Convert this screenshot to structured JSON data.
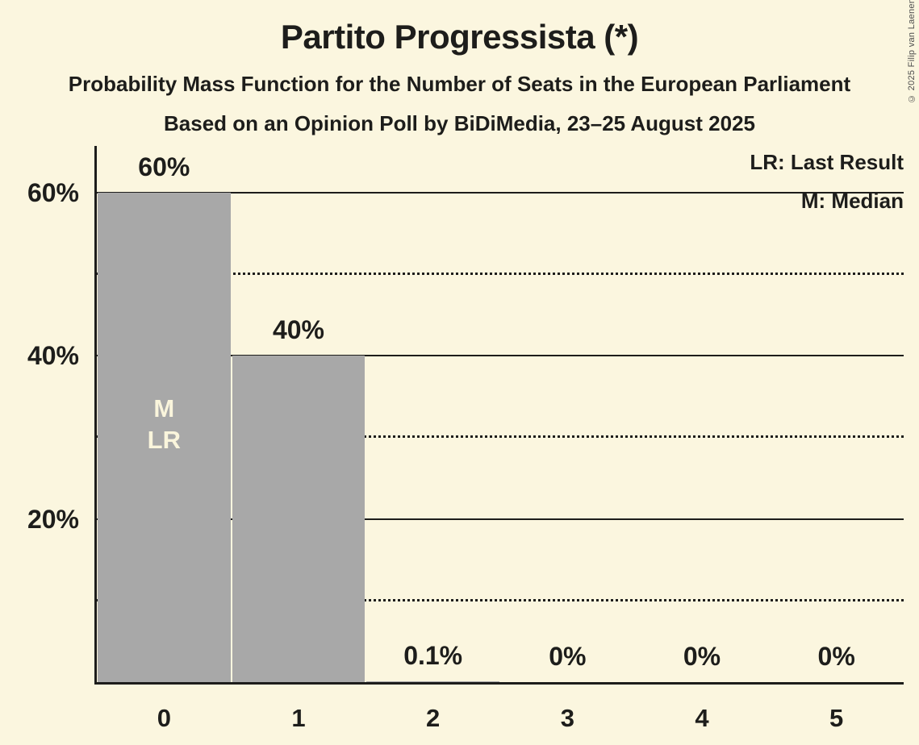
{
  "chart_data": {
    "type": "bar",
    "title": "Partito Progressista (*)",
    "subtitle": "Probability Mass Function for the Number of Seats in the European Parliament",
    "source_line": "Based on an Opinion Poll by BiDiMedia, 23–25 August 2025",
    "copyright": "© 2025 Filip van Laenen",
    "legend": [
      {
        "abbr": "LR",
        "label": "LR: Last Result"
      },
      {
        "abbr": "M",
        "label": "M: Median"
      }
    ],
    "legend_position": "top-right",
    "xlabel": "",
    "ylabel": "",
    "categories": [
      "0",
      "1",
      "2",
      "3",
      "4",
      "5"
    ],
    "values": [
      60,
      40,
      0.1,
      0,
      0,
      0
    ],
    "bar_labels": [
      "60%",
      "40%",
      "0.1%",
      "0%",
      "0%",
      "0%"
    ],
    "bar_annotations": [
      {
        "category_index": 0,
        "lines": [
          "M",
          "LR"
        ]
      }
    ],
    "y_ticks": [
      {
        "value": 60,
        "label": "60%"
      },
      {
        "value": 40,
        "label": "40%"
      },
      {
        "value": 20,
        "label": "20%"
      }
    ],
    "minor_gridlines": [
      50,
      30,
      10
    ],
    "ylim": [
      0,
      65.7
    ],
    "grid": "horizontal",
    "colors": {
      "background": "#FBF6DF",
      "bar": "#A8A8A8",
      "text": "#1D1D1B",
      "bar_annotation_text": "#FAF5DC",
      "copyright_text": "#4D4D4D"
    }
  }
}
